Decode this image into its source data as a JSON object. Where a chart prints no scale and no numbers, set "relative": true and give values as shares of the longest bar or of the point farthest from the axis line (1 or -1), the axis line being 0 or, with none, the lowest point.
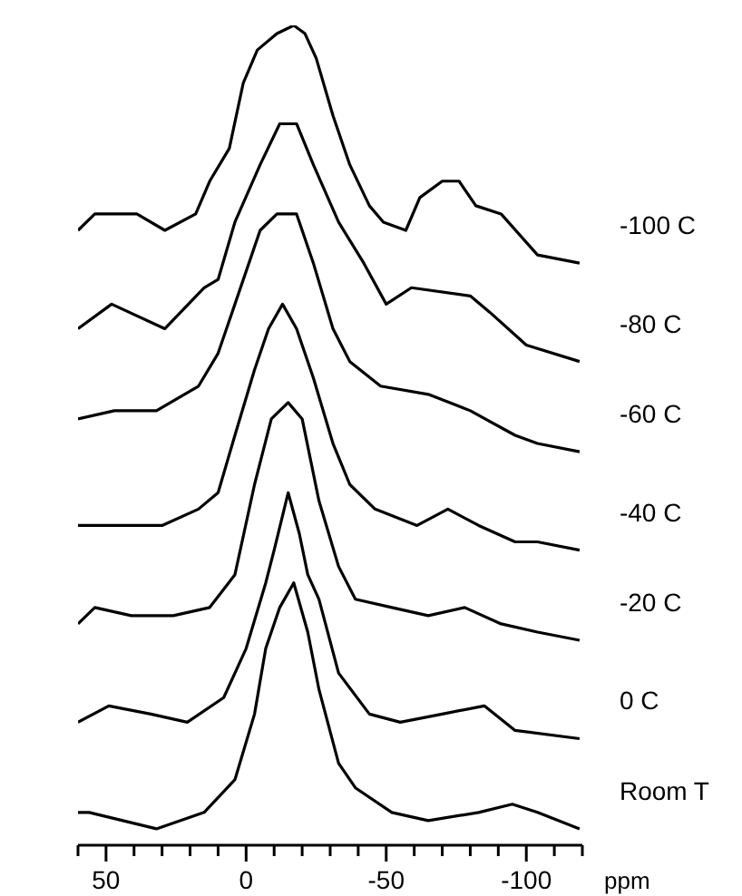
{
  "chart_data": {
    "type": "line",
    "relative": true,
    "xlabel": "ppm",
    "xlim": [
      60,
      -120
    ],
    "xticks": [
      {
        "value": 60,
        "label": null
      },
      50,
      {
        "value": 40,
        "label": null
      },
      {
        "value": 30,
        "label": null
      },
      {
        "value": 20,
        "label": null
      },
      {
        "value": 10,
        "label": null
      },
      0,
      {
        "value": -10,
        "label": null
      },
      {
        "value": -20,
        "label": null
      },
      {
        "value": -30,
        "label": null
      },
      {
        "value": -40,
        "label": null
      },
      -50,
      {
        "value": -60,
        "label": null
      },
      {
        "value": -70,
        "label": null
      },
      {
        "value": -80,
        "label": null
      },
      {
        "value": -90,
        "label": null
      },
      -100,
      {
        "value": -110,
        "label": null
      },
      {
        "value": -120,
        "label": null
      }
    ],
    "series": [
      {
        "name": "-100 C",
        "color": "#000000",
        "x": [
          60,
          54,
          47,
          39,
          29,
          18,
          13,
          6,
          1,
          -4,
          -11,
          -17,
          -21,
          -25,
          -31,
          -37,
          -44,
          -49,
          -57,
          -62,
          -70,
          -76,
          -82,
          -91,
          -104,
          -119
        ],
        "values": [
          0.75,
          0.77,
          0.77,
          0.77,
          0.75,
          0.77,
          0.81,
          0.85,
          0.93,
          0.97,
          0.99,
          1.0,
          0.99,
          0.96,
          0.89,
          0.83,
          0.78,
          0.76,
          0.75,
          0.79,
          0.81,
          0.81,
          0.78,
          0.77,
          0.72,
          0.71
        ]
      },
      {
        "name": "-80 C",
        "color": "#000000",
        "x": [
          60,
          48,
          29,
          15,
          10,
          4,
          -5,
          -12,
          -18,
          -24,
          -33,
          -42,
          -50,
          -59,
          -80,
          -87,
          -100,
          -119
        ],
        "values": [
          0.63,
          0.66,
          0.63,
          0.68,
          0.69,
          0.76,
          0.83,
          0.88,
          0.88,
          0.83,
          0.76,
          0.71,
          0.66,
          0.68,
          0.67,
          0.65,
          0.61,
          0.59
        ]
      },
      {
        "name": "-60 C",
        "color": "#000000",
        "x": [
          60,
          47,
          32,
          17,
          10,
          4,
          -5,
          -11,
          -18,
          -24,
          -31,
          -37,
          -48,
          -65,
          -80,
          -96,
          -104,
          -119
        ],
        "values": [
          0.52,
          0.53,
          0.53,
          0.56,
          0.6,
          0.66,
          0.75,
          0.77,
          0.77,
          0.71,
          0.63,
          0.59,
          0.56,
          0.55,
          0.53,
          0.5,
          0.49,
          0.48
        ]
      },
      {
        "name": "-40 C",
        "color": "#000000",
        "x": [
          60,
          45,
          30,
          17,
          10,
          4,
          -3,
          -8,
          -13,
          -18,
          -24,
          -31,
          -37,
          -46,
          -61,
          -72,
          -83,
          -96,
          -104,
          -119
        ],
        "values": [
          0.39,
          0.39,
          0.39,
          0.41,
          0.43,
          0.5,
          0.58,
          0.63,
          0.66,
          0.63,
          0.57,
          0.49,
          0.44,
          0.41,
          0.39,
          0.41,
          0.39,
          0.37,
          0.37,
          0.36
        ]
      },
      {
        "name": "-20 C",
        "color": "#000000",
        "x": [
          60,
          54,
          41,
          26,
          13,
          4,
          -3,
          -9,
          -15,
          -20,
          -26,
          -33,
          -39,
          -52,
          -65,
          -78,
          -91,
          -104,
          -119
        ],
        "values": [
          0.27,
          0.29,
          0.28,
          0.28,
          0.29,
          0.33,
          0.44,
          0.52,
          0.54,
          0.52,
          0.42,
          0.34,
          0.3,
          0.29,
          0.28,
          0.29,
          0.27,
          0.26,
          0.25
        ]
      },
      {
        "name": "0 C",
        "color": "#000000",
        "x": [
          60,
          49,
          34,
          21,
          8,
          0,
          -7,
          -10,
          -15,
          -19,
          -22,
          -26,
          -33,
          -44,
          -55,
          -70,
          -85,
          -96,
          -119
        ],
        "values": [
          0.15,
          0.17,
          0.16,
          0.15,
          0.18,
          0.24,
          0.32,
          0.36,
          0.43,
          0.38,
          0.33,
          0.3,
          0.21,
          0.16,
          0.15,
          0.16,
          0.17,
          0.14,
          0.13
        ]
      },
      {
        "name": "Room T",
        "color": "#000000",
        "x": [
          60,
          56,
          32,
          15,
          4,
          -3,
          -7,
          -12,
          -17,
          -22,
          -26,
          -33,
          -39,
          -52,
          -65,
          -83,
          -95,
          -104,
          -119
        ],
        "values": [
          0.04,
          0.04,
          0.02,
          0.04,
          0.08,
          0.16,
          0.24,
          0.29,
          0.32,
          0.26,
          0.19,
          0.1,
          0.07,
          0.04,
          0.03,
          0.04,
          0.05,
          0.04,
          0.02
        ]
      }
    ]
  }
}
